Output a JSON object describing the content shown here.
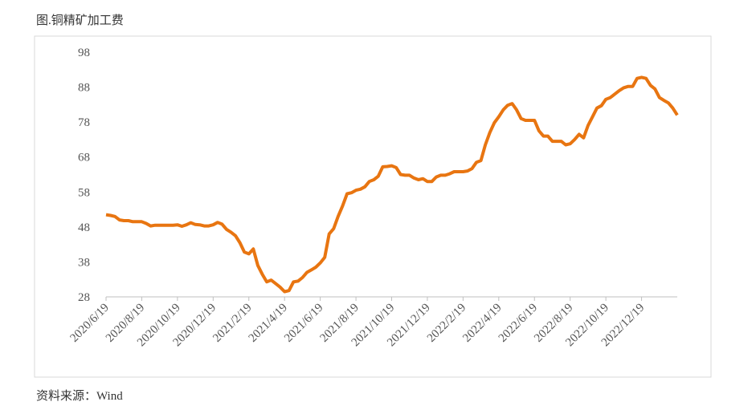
{
  "chart_data": {
    "type": "line",
    "title": "图.铜精矿加工费",
    "source": "资料来源：Wind",
    "categories": [
      "2020/6/19",
      null,
      null,
      null,
      null,
      null,
      null,
      null,
      "2020/8/19",
      null,
      null,
      null,
      null,
      null,
      null,
      null,
      "2020/10/19",
      null,
      null,
      null,
      null,
      null,
      null,
      null,
      "2020/12/19",
      null,
      null,
      null,
      null,
      null,
      null,
      null,
      "2021/2/19",
      null,
      null,
      null,
      null,
      null,
      null,
      null,
      "2021/4/19",
      null,
      null,
      null,
      null,
      null,
      null,
      null,
      "2021/6/19",
      null,
      null,
      null,
      null,
      null,
      null,
      null,
      "2021/8/19",
      null,
      null,
      null,
      null,
      null,
      null,
      null,
      "2021/10/19",
      null,
      null,
      null,
      null,
      null,
      null,
      null,
      "2021/12/19",
      null,
      null,
      null,
      null,
      null,
      null,
      null,
      "2022/2/19",
      null,
      null,
      null,
      null,
      null,
      null,
      null,
      "2022/4/19",
      null,
      null,
      null,
      null,
      null,
      null,
      null,
      "2022/6/19",
      null,
      null,
      null,
      null,
      null,
      null,
      null,
      "2022/8/19",
      null,
      null,
      null,
      null,
      null,
      null,
      null,
      "2022/10/19",
      null,
      null,
      null,
      null,
      null,
      null,
      null,
      "2022/12/19",
      null,
      null,
      null,
      null,
      null,
      null,
      null,
      null
    ],
    "series": [
      {
        "name": "铜精矿加工费",
        "color": "#e87511",
        "values": [
          51.5,
          51.3,
          51,
          50,
          49.8,
          49.8,
          49.5,
          49.5,
          49.5,
          49,
          48.3,
          48.5,
          48.5,
          48.5,
          48.5,
          48.5,
          48.6,
          48.2,
          48.6,
          49.2,
          48.7,
          48.6,
          48.3,
          48.3,
          48.6,
          49.3,
          48.8,
          47.3,
          46.5,
          45.5,
          43.5,
          40.8,
          40.3,
          41.7,
          37,
          34.5,
          32.3,
          32.8,
          31.8,
          30.8,
          29.5,
          29.8,
          32.3,
          32.5,
          33.5,
          35,
          35.7,
          36.5,
          37.7,
          39.3,
          46,
          47.5,
          51,
          54,
          57.5,
          57.8,
          58.5,
          58.8,
          59.5,
          61,
          61.5,
          62.5,
          65.2,
          65.3,
          65.5,
          65,
          63,
          62.8,
          62.8,
          62,
          61.5,
          61.8,
          61,
          61,
          62.3,
          62.8,
          62.8,
          63.2,
          63.8,
          63.8,
          63.8,
          64,
          64.7,
          66.5,
          67,
          71.5,
          75,
          77.8,
          79.5,
          81.5,
          82.8,
          83.3,
          81.5,
          79,
          78.5,
          78.5,
          78.5,
          75.5,
          74,
          74,
          72.5,
          72.5,
          72.5,
          71.5,
          71.8,
          73,
          74.5,
          73.5,
          77,
          79.5,
          82,
          82.7,
          84.5,
          85,
          86,
          87,
          87.8,
          88.2,
          88.2,
          90.5,
          90.8,
          90.5,
          88.5,
          87.5,
          85,
          84.2,
          83.5,
          82,
          80
        ]
      }
    ],
    "ylim": [
      28,
      98
    ],
    "yticks": [
      28,
      38,
      48,
      58,
      68,
      78,
      88,
      98
    ]
  }
}
